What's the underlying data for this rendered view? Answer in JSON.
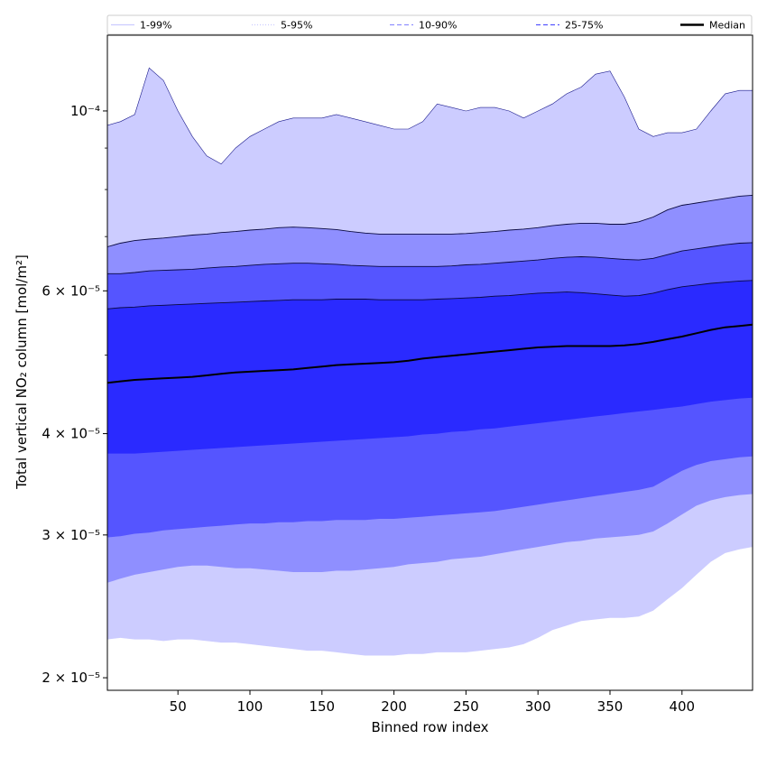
{
  "chart_data": {
    "type": "area",
    "xlabel": "Binned row index",
    "ylabel": "Total vertical NO₂ column [mol/m²]",
    "x_range": [
      1,
      449
    ],
    "y_range": [
      1.93e-05,
      0.000124
    ],
    "y_scale": "log",
    "grid": false,
    "legend_position": "top",
    "x_ticks": [
      {
        "value": 50,
        "label": "50"
      },
      {
        "value": 100,
        "label": "100"
      },
      {
        "value": 150,
        "label": "150"
      },
      {
        "value": 200,
        "label": "200"
      },
      {
        "value": 250,
        "label": "250"
      },
      {
        "value": 300,
        "label": "300"
      },
      {
        "value": 350,
        "label": "350"
      },
      {
        "value": 400,
        "label": "400"
      }
    ],
    "y_ticks": [
      {
        "value": 2e-05,
        "label": "2 × 10⁻⁵"
      },
      {
        "value": 3e-05,
        "label": "3 × 10⁻⁵"
      },
      {
        "value": 4e-05,
        "label": "4 × 10⁻⁵"
      },
      {
        "value": 6e-05,
        "label": "6 × 10⁻⁵"
      },
      {
        "value": 0.0001,
        "label": "10⁻⁴"
      }
    ],
    "y_minor_ticks": [
      5e-05,
      7e-05,
      8e-05,
      9e-05
    ],
    "legend": [
      {
        "label": "1-99%",
        "color": "#ccccff",
        "style": "solid"
      },
      {
        "label": "5-95%",
        "color": "#ccccff",
        "style": "dotted"
      },
      {
        "label": "10-90%",
        "color": "#8f8fff",
        "style": "dashed"
      },
      {
        "label": "25-75%",
        "color": "#5555ff",
        "style": "dashed"
      },
      {
        "label": "Median",
        "color": "#000000",
        "style": "solid"
      }
    ],
    "band_colors": {
      "p1_99": "#ccccff",
      "p5_95": "#8f8fff",
      "p10_90": "#5555ff",
      "p25_75": "#2a2aff",
      "median": "#000000"
    },
    "x": [
      1,
      10,
      20,
      30,
      40,
      50,
      60,
      70,
      80,
      90,
      100,
      110,
      120,
      130,
      140,
      150,
      160,
      170,
      180,
      190,
      200,
      210,
      220,
      230,
      240,
      250,
      260,
      270,
      280,
      290,
      300,
      310,
      320,
      330,
      340,
      350,
      360,
      370,
      380,
      390,
      400,
      410,
      420,
      430,
      440,
      449
    ],
    "series": [
      {
        "name": "1-99%",
        "lower": [
          2.23e-05,
          2.24e-05,
          2.23e-05,
          2.23e-05,
          2.22e-05,
          2.23e-05,
          2.23e-05,
          2.22e-05,
          2.21e-05,
          2.21e-05,
          2.2e-05,
          2.19e-05,
          2.18e-05,
          2.17e-05,
          2.16e-05,
          2.16e-05,
          2.15e-05,
          2.14e-05,
          2.13e-05,
          2.13e-05,
          2.13e-05,
          2.14e-05,
          2.14e-05,
          2.15e-05,
          2.15e-05,
          2.15e-05,
          2.16e-05,
          2.17e-05,
          2.18e-05,
          2.2e-05,
          2.24e-05,
          2.29e-05,
          2.32e-05,
          2.35e-05,
          2.36e-05,
          2.37e-05,
          2.37e-05,
          2.38e-05,
          2.42e-05,
          2.5e-05,
          2.58e-05,
          2.68e-05,
          2.78e-05,
          2.85e-05,
          2.88e-05,
          2.9e-05
        ],
        "upper": [
          9.6e-05,
          9.7e-05,
          9.9e-05,
          0.000113,
          0.000109,
          0.0001,
          9.3e-05,
          8.8e-05,
          8.6e-05,
          9e-05,
          9.3e-05,
          9.5e-05,
          9.7e-05,
          9.8e-05,
          9.8e-05,
          9.8e-05,
          9.9e-05,
          9.8e-05,
          9.7e-05,
          9.6e-05,
          9.5e-05,
          9.5e-05,
          9.7e-05,
          0.000102,
          0.000101,
          0.0001,
          0.000101,
          0.000101,
          0.0001,
          9.8e-05,
          0.0001,
          0.000102,
          0.000105,
          0.000107,
          0.000111,
          0.000112,
          0.000104,
          9.5e-05,
          9.3e-05,
          9.4e-05,
          9.4e-05,
          9.5e-05,
          0.0001,
          0.000105,
          0.000106,
          0.000106
        ]
      },
      {
        "name": "5-95%",
        "lower": [
          2.62e-05,
          2.65e-05,
          2.68e-05,
          2.7e-05,
          2.72e-05,
          2.74e-05,
          2.75e-05,
          2.75e-05,
          2.74e-05,
          2.73e-05,
          2.73e-05,
          2.72e-05,
          2.71e-05,
          2.7e-05,
          2.7e-05,
          2.7e-05,
          2.71e-05,
          2.71e-05,
          2.72e-05,
          2.73e-05,
          2.74e-05,
          2.76e-05,
          2.77e-05,
          2.78e-05,
          2.8e-05,
          2.81e-05,
          2.82e-05,
          2.84e-05,
          2.86e-05,
          2.88e-05,
          2.9e-05,
          2.92e-05,
          2.94e-05,
          2.95e-05,
          2.97e-05,
          2.98e-05,
          2.99e-05,
          3e-05,
          3.03e-05,
          3.1e-05,
          3.18e-05,
          3.26e-05,
          3.31e-05,
          3.34e-05,
          3.36e-05,
          3.37e-05
        ],
        "upper": [
          6.8e-05,
          6.87e-05,
          6.92e-05,
          6.95e-05,
          6.97e-05,
          7e-05,
          7.03e-05,
          7.05e-05,
          7.08e-05,
          7.1e-05,
          7.13e-05,
          7.15e-05,
          7.18e-05,
          7.19e-05,
          7.18e-05,
          7.16e-05,
          7.14e-05,
          7.1e-05,
          7.07e-05,
          7.05e-05,
          7.05e-05,
          7.05e-05,
          7.05e-05,
          7.05e-05,
          7.05e-05,
          7.06e-05,
          7.08e-05,
          7.1e-05,
          7.13e-05,
          7.15e-05,
          7.18e-05,
          7.22e-05,
          7.25e-05,
          7.27e-05,
          7.27e-05,
          7.25e-05,
          7.25e-05,
          7.3e-05,
          7.4e-05,
          7.55e-05,
          7.65e-05,
          7.7e-05,
          7.75e-05,
          7.8e-05,
          7.85e-05,
          7.87e-05
        ]
      },
      {
        "name": "10-90%",
        "lower": [
          2.98e-05,
          2.99e-05,
          3.01e-05,
          3.02e-05,
          3.04e-05,
          3.05e-05,
          3.06e-05,
          3.07e-05,
          3.08e-05,
          3.09e-05,
          3.1e-05,
          3.1e-05,
          3.11e-05,
          3.11e-05,
          3.12e-05,
          3.12e-05,
          3.13e-05,
          3.13e-05,
          3.13e-05,
          3.14e-05,
          3.14e-05,
          3.15e-05,
          3.16e-05,
          3.17e-05,
          3.18e-05,
          3.19e-05,
          3.2e-05,
          3.21e-05,
          3.23e-05,
          3.25e-05,
          3.27e-05,
          3.29e-05,
          3.31e-05,
          3.33e-05,
          3.35e-05,
          3.37e-05,
          3.39e-05,
          3.41e-05,
          3.44e-05,
          3.52e-05,
          3.6e-05,
          3.66e-05,
          3.7e-05,
          3.72e-05,
          3.74e-05,
          3.75e-05
        ],
        "upper": [
          6.3e-05,
          6.3e-05,
          6.32e-05,
          6.35e-05,
          6.36e-05,
          6.37e-05,
          6.38e-05,
          6.4e-05,
          6.42e-05,
          6.43e-05,
          6.45e-05,
          6.47e-05,
          6.48e-05,
          6.49e-05,
          6.49e-05,
          6.48e-05,
          6.47e-05,
          6.45e-05,
          6.44e-05,
          6.43e-05,
          6.43e-05,
          6.43e-05,
          6.43e-05,
          6.43e-05,
          6.44e-05,
          6.46e-05,
          6.47e-05,
          6.49e-05,
          6.51e-05,
          6.53e-05,
          6.55e-05,
          6.58e-05,
          6.6e-05,
          6.61e-05,
          6.6e-05,
          6.58e-05,
          6.56e-05,
          6.55e-05,
          6.58e-05,
          6.65e-05,
          6.72e-05,
          6.76e-05,
          6.8e-05,
          6.84e-05,
          6.87e-05,
          6.88e-05
        ]
      },
      {
        "name": "25-75%",
        "lower": [
          3.78e-05,
          3.78e-05,
          3.78e-05,
          3.79e-05,
          3.8e-05,
          3.81e-05,
          3.82e-05,
          3.83e-05,
          3.84e-05,
          3.85e-05,
          3.86e-05,
          3.87e-05,
          3.88e-05,
          3.89e-05,
          3.9e-05,
          3.91e-05,
          3.92e-05,
          3.93e-05,
          3.94e-05,
          3.95e-05,
          3.96e-05,
          3.97e-05,
          3.99e-05,
          4e-05,
          4.02e-05,
          4.03e-05,
          4.05e-05,
          4.06e-05,
          4.08e-05,
          4.1e-05,
          4.12e-05,
          4.14e-05,
          4.16e-05,
          4.18e-05,
          4.2e-05,
          4.22e-05,
          4.24e-05,
          4.26e-05,
          4.28e-05,
          4.3e-05,
          4.32e-05,
          4.35e-05,
          4.38e-05,
          4.4e-05,
          4.42e-05,
          4.43e-05
        ],
        "upper": [
          5.7e-05,
          5.72e-05,
          5.73e-05,
          5.75e-05,
          5.76e-05,
          5.77e-05,
          5.78e-05,
          5.79e-05,
          5.8e-05,
          5.81e-05,
          5.82e-05,
          5.83e-05,
          5.84e-05,
          5.85e-05,
          5.85e-05,
          5.85e-05,
          5.86e-05,
          5.86e-05,
          5.86e-05,
          5.85e-05,
          5.85e-05,
          5.85e-05,
          5.85e-05,
          5.86e-05,
          5.87e-05,
          5.88e-05,
          5.89e-05,
          5.91e-05,
          5.92e-05,
          5.94e-05,
          5.96e-05,
          5.97e-05,
          5.98e-05,
          5.97e-05,
          5.95e-05,
          5.93e-05,
          5.91e-05,
          5.92e-05,
          5.96e-05,
          6.02e-05,
          6.07e-05,
          6.1e-05,
          6.13e-05,
          6.15e-05,
          6.17e-05,
          6.18e-05
        ]
      },
      {
        "name": "Median",
        "values": [
          4.62e-05,
          4.64e-05,
          4.66e-05,
          4.67e-05,
          4.68e-05,
          4.69e-05,
          4.7e-05,
          4.72e-05,
          4.74e-05,
          4.76e-05,
          4.77e-05,
          4.78e-05,
          4.79e-05,
          4.8e-05,
          4.82e-05,
          4.84e-05,
          4.86e-05,
          4.87e-05,
          4.88e-05,
          4.89e-05,
          4.9e-05,
          4.92e-05,
          4.95e-05,
          4.97e-05,
          4.99e-05,
          5.01e-05,
          5.03e-05,
          5.05e-05,
          5.07e-05,
          5.09e-05,
          5.11e-05,
          5.12e-05,
          5.13e-05,
          5.13e-05,
          5.13e-05,
          5.13e-05,
          5.14e-05,
          5.16e-05,
          5.19e-05,
          5.23e-05,
          5.27e-05,
          5.32e-05,
          5.37e-05,
          5.41e-05,
          5.43e-05,
          5.45e-05
        ]
      }
    ]
  }
}
